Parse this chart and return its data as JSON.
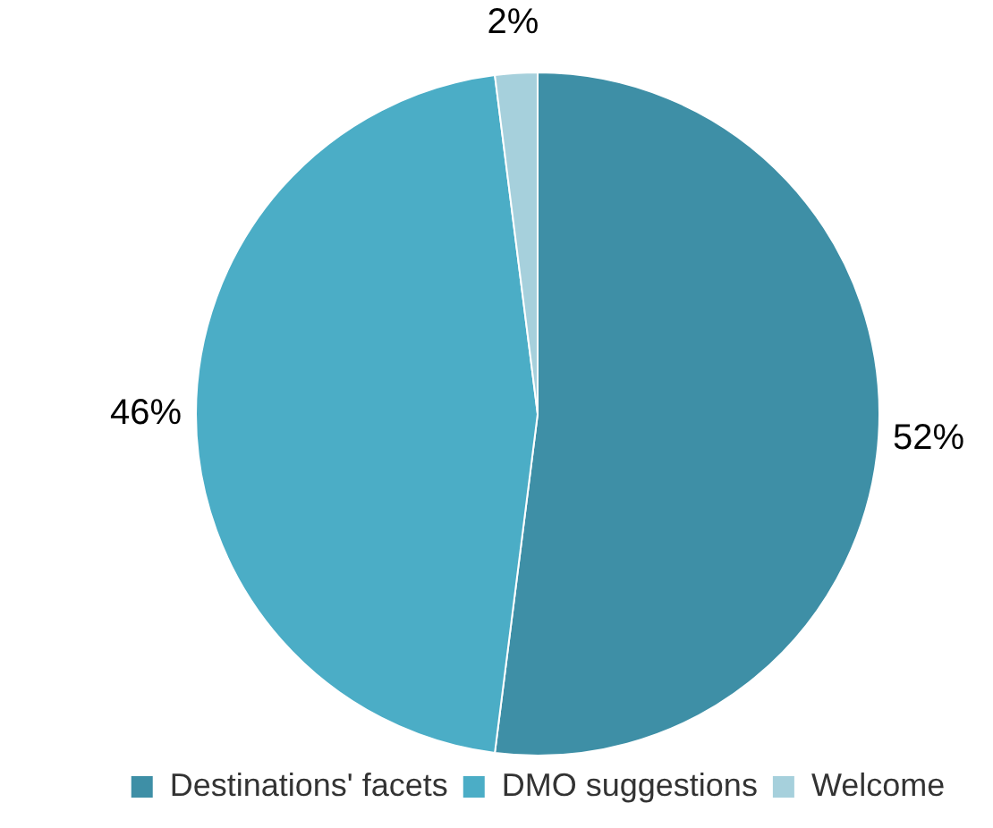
{
  "chart_data": {
    "type": "pie",
    "categories": [
      "Destinations' facets",
      "DMO suggestions",
      "Welcome"
    ],
    "values": [
      52,
      46,
      2
    ],
    "value_labels": [
      "52%",
      "46%",
      "2%"
    ],
    "colors": [
      "#3e8fa6",
      "#4badc6",
      "#a6d0dc"
    ],
    "legend": "bottom"
  }
}
